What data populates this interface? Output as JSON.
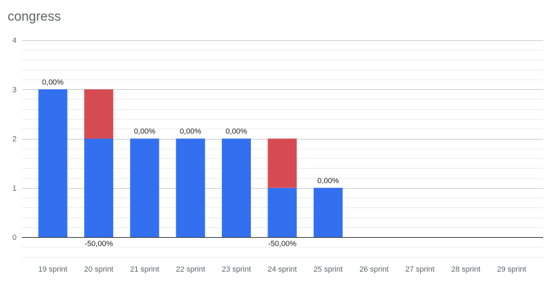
{
  "chart_data": {
    "type": "bar",
    "stacked": true,
    "title": "congress",
    "xlabel": "",
    "ylabel": "",
    "ylim": [
      0,
      4
    ],
    "yticks": [
      0,
      1,
      2,
      3,
      4
    ],
    "grid": true,
    "legend": "none",
    "categories": [
      "19 sprint",
      "20 sprint",
      "21 sprint",
      "22 sprint",
      "23 sprint",
      "24 sprint",
      "25 sprint",
      "26 sprint",
      "27 sprint",
      "28 sprint",
      "29 sprint"
    ],
    "series": [
      {
        "color": "#3370f0",
        "values": [
          3,
          2,
          2,
          2,
          2,
          1,
          1,
          0,
          0,
          0,
          0
        ]
      },
      {
        "color": "#d64b51",
        "values": [
          0,
          1,
          0,
          0,
          0,
          1,
          0,
          0,
          0,
          0,
          0
        ]
      }
    ],
    "annotations": [
      {
        "category": "19 sprint",
        "text": "0,00%",
        "position": "above"
      },
      {
        "category": "20 sprint",
        "text": "-50,00%",
        "position": "below"
      },
      {
        "category": "21 sprint",
        "text": "0,00%",
        "position": "above"
      },
      {
        "category": "22 sprint",
        "text": "0,00%",
        "position": "above"
      },
      {
        "category": "23 sprint",
        "text": "0,00%",
        "position": "above"
      },
      {
        "category": "24 sprint",
        "text": "-50,00%",
        "position": "below"
      },
      {
        "category": "25 sprint",
        "text": "0,00%",
        "position": "above"
      }
    ]
  }
}
